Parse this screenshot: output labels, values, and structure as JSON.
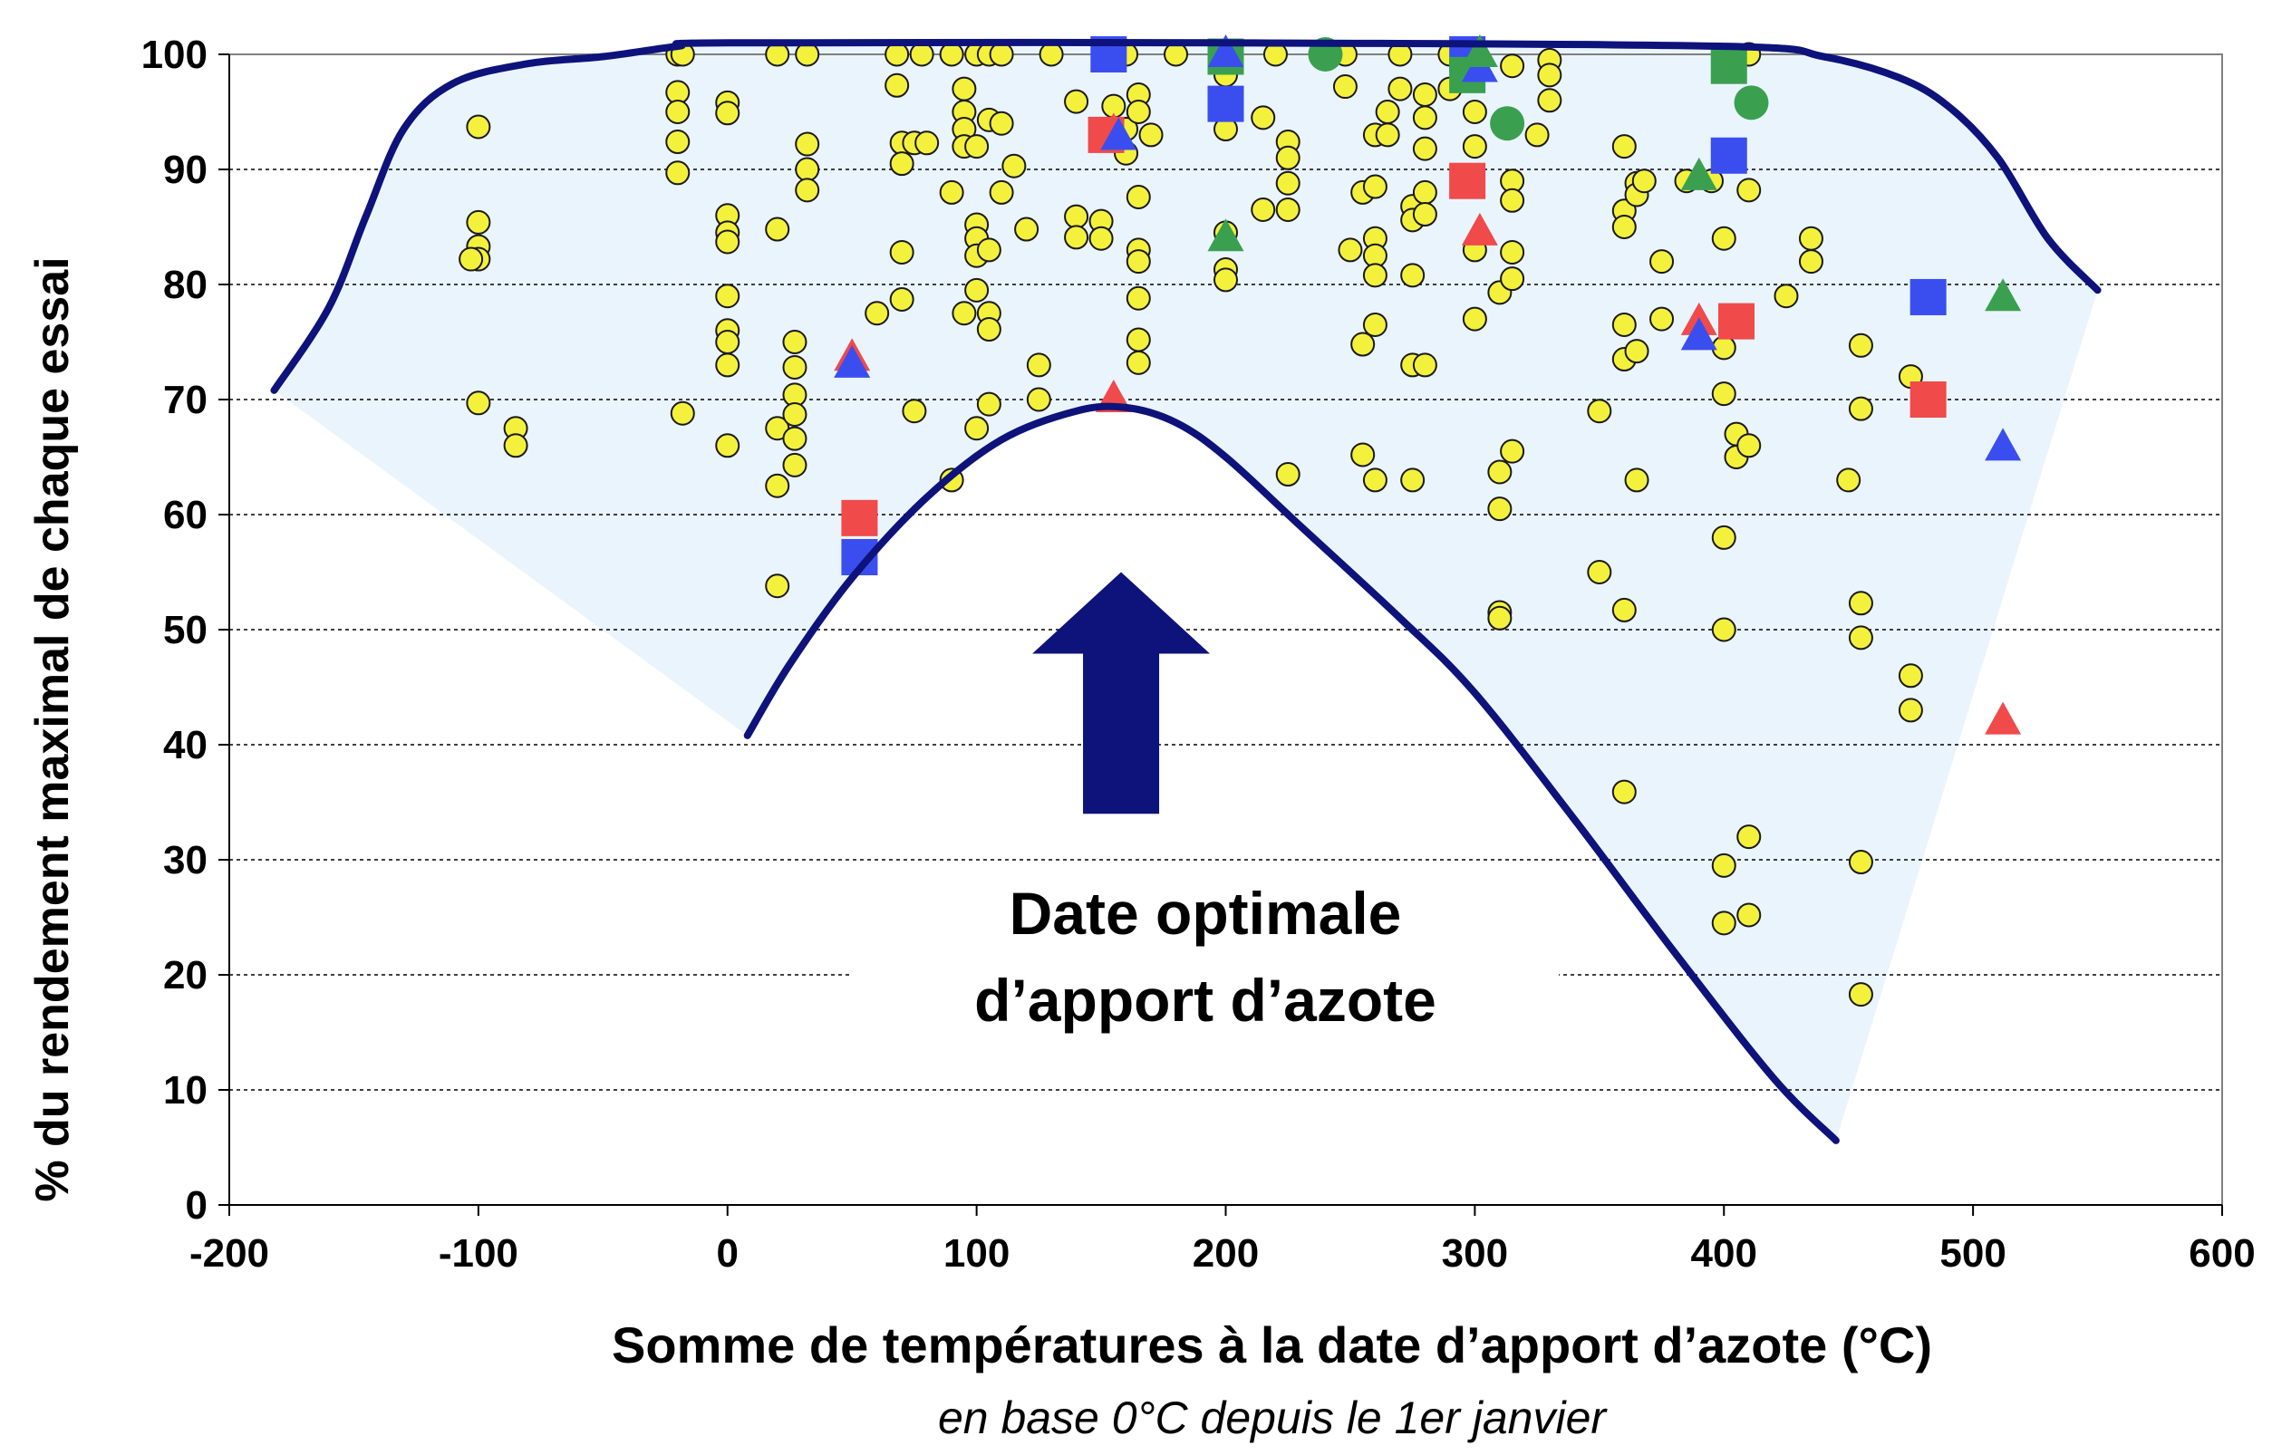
{
  "chart_data": {
    "type": "scatter",
    "xlabel": "Somme de températures à la date d’apport d’azote (°C)",
    "xsublabel": "en base 0°C depuis le 1er janvier",
    "ylabel": "% du rendement maximal de chaque essai",
    "annotation": [
      "Date optimale",
      "d’apport d’azote"
    ],
    "xlim": [
      -200,
      600
    ],
    "ylim": [
      0,
      100
    ],
    "xticks": [
      "-200",
      "-100",
      "0",
      "100",
      "200",
      "300",
      "400",
      "500",
      "600"
    ],
    "yticks": [
      "0",
      "10",
      "20",
      "30",
      "40",
      "50",
      "60",
      "70",
      "80",
      "90",
      "100"
    ],
    "grid": "horizontal dashed",
    "colors": {
      "yellow": "#f4f13c",
      "red": "#f04a4a",
      "blue": "#3a4ef0",
      "green": "#3aa050",
      "envelope": "#0d137a",
      "fill": "#eaf4fd",
      "arrow": "#0d137a"
    },
    "series": [
      {
        "marker": "circle-small",
        "color": "yellow",
        "points": [
          [
            -100,
            93.7
          ],
          [
            -100,
            85.4
          ],
          [
            -100,
            83.3
          ],
          [
            -100,
            82.2
          ],
          [
            -100,
            69.7
          ],
          [
            -85,
            67.5
          ],
          [
            -85,
            66
          ],
          [
            -20,
            100
          ],
          [
            -20,
            96.7
          ],
          [
            -20,
            95
          ],
          [
            -20,
            92.4
          ],
          [
            -20,
            89.7
          ],
          [
            -18,
            100
          ],
          [
            -18,
            68.8
          ],
          [
            0,
            95.8
          ],
          [
            0,
            94.9
          ],
          [
            0,
            86
          ],
          [
            0,
            84.5
          ],
          [
            0,
            83.7
          ],
          [
            0,
            79
          ],
          [
            0,
            76
          ],
          [
            0,
            75
          ],
          [
            0,
            73
          ],
          [
            0,
            66
          ],
          [
            20,
            100
          ],
          [
            20,
            84.8
          ],
          [
            20,
            67.5
          ],
          [
            20,
            62.5
          ],
          [
            20,
            53.8
          ],
          [
            27,
            75
          ],
          [
            27,
            72.8
          ],
          [
            27,
            70.4
          ],
          [
            27,
            68.7
          ],
          [
            27,
            66.6
          ],
          [
            27,
            64.3
          ],
          [
            32,
            100
          ],
          [
            32,
            92.2
          ],
          [
            32,
            90
          ],
          [
            32,
            88.2
          ],
          [
            60,
            77.5
          ],
          [
            68,
            97.3
          ],
          [
            70,
            92.3
          ],
          [
            70,
            90.5
          ],
          [
            70,
            82.8
          ],
          [
            70,
            78.7
          ],
          [
            75,
            92.3
          ],
          [
            75,
            69
          ],
          [
            78,
            100
          ],
          [
            80,
            92.3
          ],
          [
            68,
            100
          ],
          [
            90,
            100
          ],
          [
            90,
            88
          ],
          [
            90,
            63
          ],
          [
            95,
            97
          ],
          [
            95,
            95
          ],
          [
            95,
            93.5
          ],
          [
            95,
            92
          ],
          [
            95,
            77.5
          ],
          [
            100,
            100
          ],
          [
            100,
            92
          ],
          [
            100,
            85.2
          ],
          [
            100,
            84
          ],
          [
            100,
            82.5
          ],
          [
            100,
            79.5
          ],
          [
            100,
            67.5
          ],
          [
            105,
            100
          ],
          [
            105,
            94.3
          ],
          [
            105,
            83
          ],
          [
            105,
            77.5
          ],
          [
            105,
            76.1
          ],
          [
            105,
            69.6
          ],
          [
            110,
            100
          ],
          [
            110,
            94
          ],
          [
            110,
            88
          ],
          [
            115,
            90.3
          ],
          [
            120,
            84.8
          ],
          [
            125,
            73
          ],
          [
            125,
            70
          ],
          [
            130,
            100
          ],
          [
            140,
            95.9
          ],
          [
            140,
            85.9
          ],
          [
            140,
            84.1
          ],
          [
            150,
            85.5
          ],
          [
            150,
            84
          ],
          [
            155,
            95.5
          ],
          [
            160,
            100
          ],
          [
            160,
            93.5
          ],
          [
            160,
            91.4
          ],
          [
            165,
            96.5
          ],
          [
            165,
            95
          ],
          [
            165,
            87.6
          ],
          [
            165,
            83
          ],
          [
            165,
            82
          ],
          [
            165,
            78.8
          ],
          [
            165,
            75.2
          ],
          [
            165,
            73.2
          ],
          [
            170,
            93
          ],
          [
            180,
            100
          ],
          [
            200,
            100
          ],
          [
            200,
            98.2
          ],
          [
            200,
            93.5
          ],
          [
            200,
            84.5
          ],
          [
            200,
            81.3
          ],
          [
            200,
            80.4
          ],
          [
            215,
            94.5
          ],
          [
            215,
            86.5
          ],
          [
            220,
            100
          ],
          [
            225,
            92.4
          ],
          [
            225,
            91
          ],
          [
            225,
            88.8
          ],
          [
            225,
            86.5
          ],
          [
            225,
            63.5
          ],
          [
            240,
            100
          ],
          [
            248,
            100
          ],
          [
            248,
            97.2
          ],
          [
            250,
            83
          ],
          [
            255,
            88
          ],
          [
            255,
            74.8
          ],
          [
            260,
            93
          ],
          [
            260,
            88.5
          ],
          [
            260,
            84
          ],
          [
            260,
            82.5
          ],
          [
            260,
            80.8
          ],
          [
            260,
            76.5
          ],
          [
            260,
            63
          ],
          [
            255,
            65.2
          ],
          [
            265,
            95
          ],
          [
            265,
            93
          ],
          [
            270,
            97
          ],
          [
            270,
            100
          ],
          [
            275,
            86.8
          ],
          [
            275,
            85.6
          ],
          [
            275,
            80.8
          ],
          [
            275,
            73
          ],
          [
            275,
            63
          ],
          [
            280,
            96.5
          ],
          [
            280,
            94.5
          ],
          [
            280,
            91.8
          ],
          [
            280,
            88
          ],
          [
            280,
            86.1
          ],
          [
            280,
            73
          ],
          [
            290,
            100
          ],
          [
            290,
            97
          ],
          [
            300,
            95
          ],
          [
            300,
            92
          ],
          [
            300,
            83
          ],
          [
            300,
            77
          ],
          [
            310,
            79.3
          ],
          [
            310,
            63.7
          ],
          [
            310,
            60.5
          ],
          [
            310,
            51.5
          ],
          [
            310,
            51
          ],
          [
            315,
            99
          ],
          [
            315,
            89
          ],
          [
            315,
            87.3
          ],
          [
            315,
            82.8
          ],
          [
            315,
            80.5
          ],
          [
            315,
            65.5
          ],
          [
            325,
            93
          ],
          [
            330,
            99.5
          ],
          [
            330,
            98.2
          ],
          [
            330,
            96
          ],
          [
            350,
            69
          ],
          [
            350,
            55
          ],
          [
            360,
            92
          ],
          [
            360,
            86.4
          ],
          [
            360,
            85
          ],
          [
            360,
            76.5
          ],
          [
            360,
            73.5
          ],
          [
            360,
            51.7
          ],
          [
            360,
            35.9
          ],
          [
            365,
            88.8
          ],
          [
            365,
            87.8
          ],
          [
            365,
            74.2
          ],
          [
            365,
            63
          ],
          [
            368,
            89
          ],
          [
            375,
            82
          ],
          [
            375,
            77
          ],
          [
            385,
            89
          ],
          [
            395,
            89
          ],
          [
            400,
            84
          ],
          [
            400,
            74.5
          ],
          [
            400,
            70.5
          ],
          [
            400,
            58
          ],
          [
            400,
            50
          ],
          [
            400,
            29.5
          ],
          [
            400,
            24.5
          ],
          [
            405,
            67
          ],
          [
            405,
            65
          ],
          [
            410,
            100
          ],
          [
            410,
            88.2
          ],
          [
            410,
            66
          ],
          [
            410,
            32
          ],
          [
            410,
            25.2
          ],
          [
            425,
            79
          ],
          [
            435,
            84
          ],
          [
            435,
            82
          ],
          [
            450,
            63
          ],
          [
            455,
            74.7
          ],
          [
            455,
            69.2
          ],
          [
            455,
            52.3
          ],
          [
            455,
            49.3
          ],
          [
            455,
            29.8
          ],
          [
            455,
            18.3
          ],
          [
            475,
            72
          ],
          [
            475,
            46
          ],
          [
            475,
            43
          ],
          [
            -103,
            82.2
          ]
        ]
      },
      {
        "marker": "square",
        "color": "red",
        "points": [
          [
            53,
            59.7
          ],
          [
            152,
            93
          ],
          [
            297,
            89
          ],
          [
            405,
            76.8
          ],
          [
            482,
            70
          ]
        ]
      },
      {
        "marker": "square",
        "color": "blue",
        "points": [
          [
            53,
            56.3
          ],
          [
            153,
            100
          ],
          [
            200,
            95.7
          ],
          [
            297,
            100
          ],
          [
            402,
            91.2
          ],
          [
            482,
            78.9
          ]
        ]
      },
      {
        "marker": "square",
        "color": "green",
        "points": [
          [
            200,
            99.8
          ],
          [
            297,
            98.2
          ],
          [
            402,
            99
          ]
        ]
      },
      {
        "marker": "circle-large",
        "color": "green",
        "points": [
          [
            240,
            100
          ],
          [
            313,
            94
          ],
          [
            411,
            95.8
          ]
        ]
      },
      {
        "marker": "triangle",
        "color": "red",
        "points": [
          [
            50,
            73.6
          ],
          [
            155,
            93.2
          ],
          [
            155,
            70
          ],
          [
            302,
            84.5
          ],
          [
            390,
            76.7
          ],
          [
            512,
            42
          ]
        ]
      },
      {
        "marker": "triangle",
        "color": "blue",
        "points": [
          [
            50,
            73
          ],
          [
            157,
            92.8
          ],
          [
            200,
            100
          ],
          [
            302,
            98.7
          ],
          [
            390,
            75.4
          ],
          [
            512,
            65.8
          ]
        ]
      },
      {
        "marker": "triangle",
        "color": "green",
        "points": [
          [
            200,
            84
          ],
          [
            302,
            100
          ],
          [
            390,
            89.3
          ],
          [
            512,
            78.8
          ]
        ]
      }
    ],
    "envelope": {
      "upper": [
        [
          -182,
          70.8
        ],
        [
          -160,
          78
        ],
        [
          -145,
          86
        ],
        [
          -130,
          93.5
        ],
        [
          -110,
          97.5
        ],
        [
          -80,
          99.2
        ],
        [
          -50,
          99.8
        ],
        [
          -20,
          100.7
        ],
        [
          0,
          101
        ],
        [
          200,
          101
        ],
        [
          400,
          100.7
        ],
        [
          440,
          99.8
        ],
        [
          470,
          98
        ],
        [
          490,
          95.5
        ],
        [
          510,
          91
        ],
        [
          530,
          84
        ],
        [
          550,
          79.5
        ]
      ],
      "lower": [
        [
          8,
          40.8
        ],
        [
          25,
          47
        ],
        [
          50,
          54.5
        ],
        [
          80,
          61.5
        ],
        [
          110,
          66.5
        ],
        [
          140,
          69
        ],
        [
          160,
          69.3
        ],
        [
          180,
          68
        ],
        [
          200,
          65
        ],
        [
          230,
          59
        ],
        [
          270,
          51
        ],
        [
          300,
          44.5
        ],
        [
          340,
          33.5
        ],
        [
          380,
          22
        ],
        [
          420,
          11
        ],
        [
          445,
          5.6
        ]
      ],
      "fill_polygon": [
        [
          -182,
          70.8
        ],
        [
          8,
          40.8
        ],
        [
          445,
          5.6
        ],
        [
          550,
          79.5
        ]
      ]
    },
    "arrow": {
      "x": 158,
      "y_from": 34,
      "y_to": 55
    }
  }
}
